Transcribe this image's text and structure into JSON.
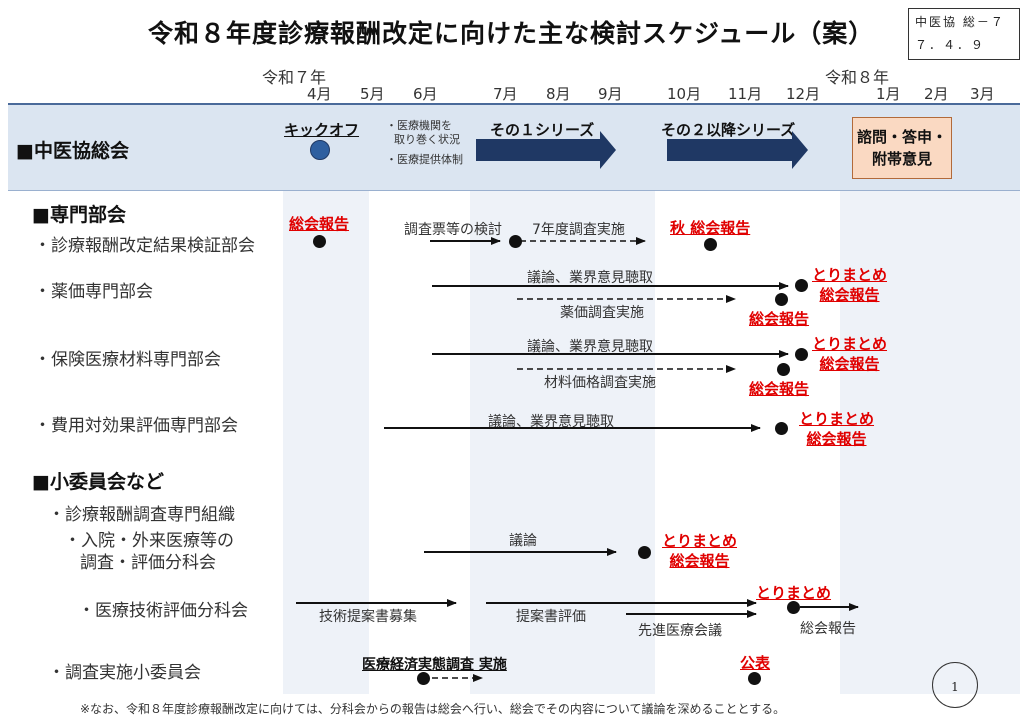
{
  "header": {
    "title": "令和８年度診療報酬改定に向けた主な検討スケジュール（案）",
    "doc_id_line1": "中医協 総－７",
    "doc_id_line2": "７．４．９"
  },
  "timeline": {
    "era_start": "令和７年",
    "era_next": "令和８年",
    "months": [
      "4月",
      "5月",
      "6月",
      "7月",
      "8月",
      "9月",
      "10月",
      "11月",
      "12月",
      "1月",
      "2月",
      "3月"
    ]
  },
  "colors": {
    "band_light": "#eef2f8",
    "header_row": "#dbe5f1",
    "arrow_navy": "#1f3864",
    "accent_red": "#e00000"
  },
  "chuikyo": {
    "header": "■中医協総会",
    "kickoff_label": "キックオフ",
    "note_line1": "・医療機関を",
    "note_line2": "取り巻く状況",
    "note_line3": "・医療提供体制",
    "series1": "その１シリーズ",
    "series2": "その２以降シリーズ",
    "final_box_line1": "諮問・答申・",
    "final_box_line2": "附帯意見"
  },
  "senmon": {
    "header": "■専門部会",
    "kensho": {
      "name": "・診療報酬改定結果検証部会",
      "report1": "総会報告",
      "step1": "調査票等の検討",
      "step2": "7年度調査実施",
      "report2": "秋 総会報告"
    },
    "yakka": {
      "name": "・薬価専門部会",
      "top_label": "議論、業界意見聴取",
      "bottom_label": "薬価調査実施",
      "end1": "とりまとめ",
      "end2": "総会報告",
      "end3": "総会報告"
    },
    "hoken": {
      "name": "・保険医療材料専門部会",
      "top_label": "議論、業界意見聴取",
      "bottom_label": "材料価格調査実施",
      "end1": "とりまとめ",
      "end2": "総会報告",
      "end3": "総会報告"
    },
    "hiyou": {
      "name": "・費用対効果評価専門部会",
      "label": "議論、業界意見聴取",
      "end1": "とりまとめ",
      "end2": "総会報告"
    }
  },
  "shoiinkai": {
    "header": "■小委員会など",
    "soshiki": "・診療報酬調査専門組織",
    "nyuin_line1": "・入院・外来医療等の",
    "nyuin_line2": "調査・評価分科会",
    "nyuin_label": "議論",
    "nyuin_end1": "とりまとめ",
    "nyuin_end2": "総会報告",
    "gijutsu_name": "・医療技術評価分科会",
    "gijutsu_step1": "技術提案書募集",
    "gijutsu_step2": "提案書評価",
    "gijutsu_step3": "先進医療会議",
    "gijutsu_end1": "とりまとめ",
    "gijutsu_end2": "総会報告",
    "chosa_name": "・調査実施小委員会",
    "chosa_label": "医療経済実態調査 実施",
    "chosa_end": "公表"
  },
  "footer": {
    "page_number": "1",
    "note": "※なお、令和８年度診療報酬改定に向けては、分科会からの報告は総会へ行い、総会でその内容について議論を深めることとする。"
  }
}
